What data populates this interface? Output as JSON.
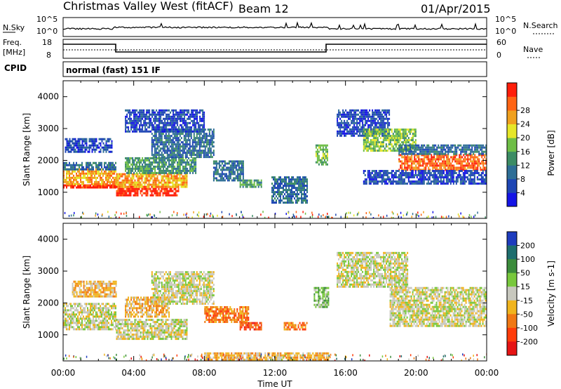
{
  "header": {
    "station": "Christmas Valley West (fitACF)",
    "beam": "Beam 12",
    "date": "01/Apr/2015"
  },
  "info_panels": {
    "nsky_label": "N.Sky",
    "nsearch_label": "N.Search",
    "noise_ticks": [
      "10^5",
      "10^0"
    ],
    "freq_label": "Freq.",
    "freq_unit": "[MHz]",
    "freq_ticks": [
      "18",
      "8"
    ],
    "nave_label": "Nave",
    "nave_ticks": [
      "60",
      "0"
    ],
    "cpid_label": "CPID",
    "cpid_value": "normal (fast) 151 IF"
  },
  "chart_data": [
    {
      "type": "heatmap",
      "name": "power",
      "ylabel": "Slant Range [km]",
      "ylim": [
        180,
        4500
      ],
      "yticks": [
        1000,
        2000,
        3000,
        4000
      ],
      "xlabel": "Time UT",
      "xlim_hours": [
        0,
        24
      ],
      "xticks": [
        "00:00",
        "04:00",
        "08:00",
        "12:00",
        "16:00",
        "20:00",
        "00:00"
      ],
      "colorbar": {
        "label": "Power [dB]",
        "ticks": [
          "4",
          "8",
          "12",
          "16",
          "20",
          "24",
          "28"
        ],
        "colors": [
          "#1414e6",
          "#1e46b4",
          "#2e6e96",
          "#3c8c64",
          "#6ebe46",
          "#e6e628",
          "#f0a01e",
          "#ff6414",
          "#ff1e0a"
        ]
      },
      "bands": [
        {
          "t0": 0.0,
          "t1": 3.0,
          "r0": 1150,
          "r1": 1250,
          "level": 8
        },
        {
          "t0": 0.0,
          "t1": 3.0,
          "r0": 1250,
          "r1": 1750,
          "level": 6
        },
        {
          "t0": 0.0,
          "t1": 3.0,
          "r0": 1750,
          "r1": 1950,
          "level": 2
        },
        {
          "t0": 0.1,
          "t1": 2.8,
          "r0": 2250,
          "r1": 2700,
          "level": 1
        },
        {
          "t0": 3.0,
          "t1": 6.5,
          "r0": 900,
          "r1": 1200,
          "level": 8
        },
        {
          "t0": 3.0,
          "t1": 7.0,
          "r0": 1200,
          "r1": 1600,
          "level": 6
        },
        {
          "t0": 3.5,
          "t1": 7.5,
          "r0": 1600,
          "r1": 2100,
          "level": 3
        },
        {
          "t0": 5.0,
          "t1": 8.5,
          "r0": 2100,
          "r1": 3000,
          "level": 2
        },
        {
          "t0": 3.5,
          "t1": 8.0,
          "r0": 2900,
          "r1": 3600,
          "level": 1
        },
        {
          "t0": 8.5,
          "t1": 10.2,
          "r0": 1400,
          "r1": 2000,
          "level": 2
        },
        {
          "t0": 10.0,
          "t1": 11.2,
          "r0": 1200,
          "r1": 1400,
          "level": 3
        },
        {
          "t0": 11.8,
          "t1": 13.8,
          "r0": 700,
          "r1": 1500,
          "level": 2
        },
        {
          "t0": 14.3,
          "t1": 15.0,
          "r0": 1900,
          "r1": 2500,
          "level": 4
        },
        {
          "t0": 15.5,
          "t1": 18.5,
          "r0": 2800,
          "r1": 3600,
          "level": 1
        },
        {
          "t0": 17.0,
          "t1": 20.0,
          "r0": 2300,
          "r1": 3000,
          "level": 4
        },
        {
          "t0": 19.0,
          "t1": 24.0,
          "r0": 1700,
          "r1": 2200,
          "level": 7
        },
        {
          "t0": 17.0,
          "t1": 24.0,
          "r0": 1300,
          "r1": 1700,
          "level": 1
        },
        {
          "t0": 19.0,
          "t1": 24.0,
          "r0": 2200,
          "r1": 2500,
          "level": 2
        }
      ]
    },
    {
      "type": "heatmap",
      "name": "velocity",
      "ylabel": "Slant Range [km]",
      "ylim": [
        180,
        4500
      ],
      "yticks": [
        1000,
        2000,
        3000,
        4000
      ],
      "xlabel": "Time UT",
      "xlim_hours": [
        0,
        24
      ],
      "xticks": [
        "00:00",
        "04:00",
        "08:00",
        "12:00",
        "16:00",
        "20:00",
        "00:00"
      ],
      "colorbar": {
        "label": "Velocity [m s-1]",
        "ticks": [
          "200",
          "100",
          "50",
          "15",
          "-15",
          "-50",
          "-100",
          "-200"
        ],
        "colors": [
          "#1e3cbe",
          "#1e6e6e",
          "#3c8c3c",
          "#78c83c",
          "#c8c8be",
          "#f0b41e",
          "#f07814",
          "#ff3c0a",
          "#e61414"
        ]
      },
      "bands": [
        {
          "t0": 0.0,
          "t1": 3.0,
          "r0": 1200,
          "r1": 2000,
          "level": 4
        },
        {
          "t0": 0.5,
          "t1": 3.0,
          "r0": 2200,
          "r1": 2700,
          "level": 5
        },
        {
          "t0": 3.0,
          "t1": 7.0,
          "r0": 900,
          "r1": 1500,
          "level": 4
        },
        {
          "t0": 3.5,
          "t1": 6.0,
          "r0": 1600,
          "r1": 2200,
          "level": 5
        },
        {
          "t0": 5.0,
          "t1": 8.5,
          "r0": 2000,
          "r1": 3000,
          "level": 4
        },
        {
          "t0": 8.0,
          "t1": 10.5,
          "r0": 1400,
          "r1": 1900,
          "level": 6
        },
        {
          "t0": 10.0,
          "t1": 11.2,
          "r0": 1200,
          "r1": 1400,
          "level": 7
        },
        {
          "t0": 12.5,
          "t1": 13.8,
          "r0": 1200,
          "r1": 1400,
          "level": 6
        },
        {
          "t0": 14.2,
          "t1": 15.0,
          "r0": 1900,
          "r1": 2500,
          "level": 3
        },
        {
          "t0": 15.5,
          "t1": 19.5,
          "r0": 2500,
          "r1": 3600,
          "level": 4
        },
        {
          "t0": 18.5,
          "t1": 24.0,
          "r0": 1300,
          "r1": 2500,
          "level": 4
        },
        {
          "t0": 8.0,
          "t1": 15.0,
          "r0": 250,
          "r1": 450,
          "level": 5
        }
      ]
    }
  ]
}
